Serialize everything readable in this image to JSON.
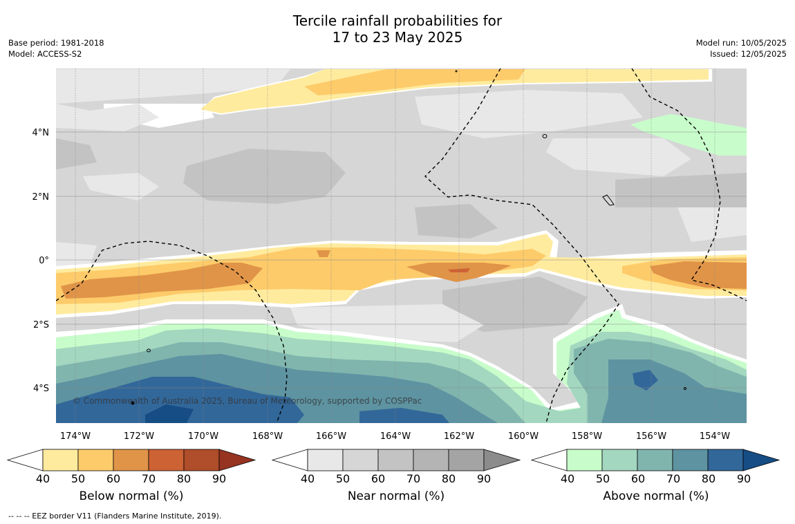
{
  "title_line1": "Tercile rainfall probabilities for",
  "title_line2": "17 to 23 May 2025",
  "meta_left": {
    "base_period": "Base period: 1981-2018",
    "model": "Model: ACCESS-S2"
  },
  "meta_right": {
    "model_run": "Model run: 10/05/2025",
    "issued": "Issued: 12/05/2025"
  },
  "map": {
    "lon_labels": [
      "174°W",
      "172°W",
      "170°W",
      "168°W",
      "166°W",
      "164°W",
      "162°W",
      "160°W",
      "158°W",
      "156°W",
      "154°W"
    ],
    "lat_labels": [
      "4°N",
      "2°N",
      "0°",
      "2°S",
      "4°S"
    ],
    "copyright": "© Commonwealth of Australia 2025, Bureau of Meteorology, supported by COSPPac"
  },
  "colorbars": [
    {
      "title": "Below normal (%)",
      "ticks": [
        "40",
        "50",
        "60",
        "70",
        "80",
        "90"
      ],
      "colors": [
        "#ffffff",
        "#ffeb9e",
        "#fdcb6a",
        "#e09448",
        "#cd6234",
        "#b04d2a",
        "#963321"
      ]
    },
    {
      "title": "Near normal (%)",
      "ticks": [
        "40",
        "50",
        "60",
        "70",
        "80",
        "90"
      ],
      "colors": [
        "#ffffff",
        "#e8e8e8",
        "#d6d6d6",
        "#c3c3c3",
        "#b4b4b4",
        "#a4a4a4",
        "#8c8c8c"
      ]
    },
    {
      "title": "Above normal (%)",
      "ticks": [
        "40",
        "50",
        "60",
        "70",
        "80",
        "90"
      ],
      "colors": [
        "#ffffff",
        "#c8fdcb",
        "#a3d7bf",
        "#80b5ae",
        "#5e93a1",
        "#326799",
        "#164d85"
      ]
    }
  ],
  "footer": "--  --  -- EEZ border V11 (Flanders Marine Institute, 2019)."
}
